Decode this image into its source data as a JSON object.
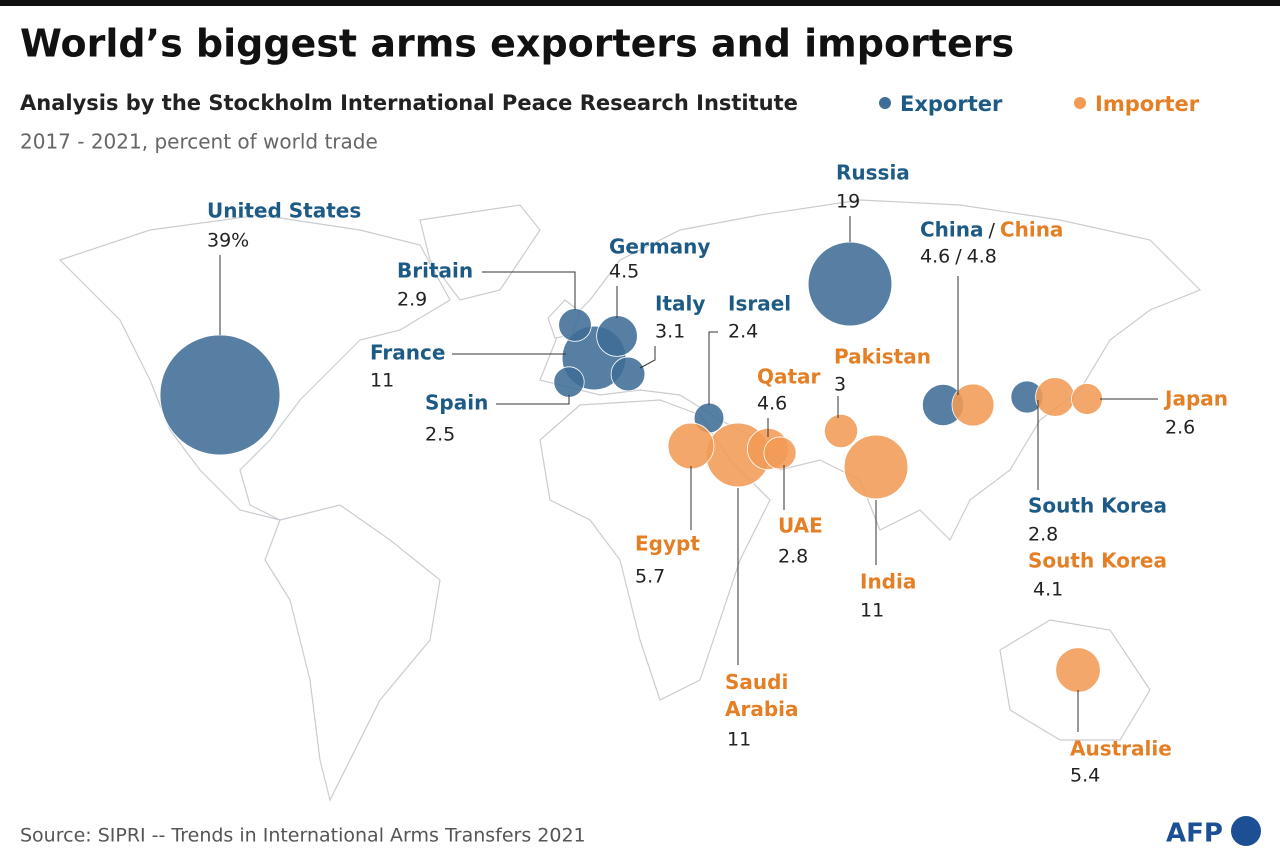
{
  "chart_data": {
    "type": "bubble-map",
    "title": "World’s biggest arms exporters and importers",
    "subtitle": "Analysis by the Stockholm International Peace Research Institute",
    "note": "2017 - 2021, percent of world trade",
    "source": "Source: SIPRI -- Trends in International Arms Transfers 2021",
    "logo": "AFP",
    "combined_separator": "/",
    "series": [
      {
        "name": "Exporter",
        "color": "#3f6d96",
        "label_color": "#1d5b86",
        "labels": [
          "United States",
          "Russia",
          "France",
          "China",
          "Germany",
          "Italy",
          "Britain",
          "Spain",
          "South Korea",
          "Israel"
        ],
        "values": [
          39,
          19,
          11,
          4.6,
          4.5,
          3.1,
          2.9,
          2.5,
          2.8,
          2.4
        ],
        "value_labels": [
          "39%",
          "19",
          "11",
          "4.6",
          "4.5",
          "3.1",
          "2.9",
          "2.5",
          "2.8",
          "2.4"
        ]
      },
      {
        "name": "Importer",
        "color": "#f19b55",
        "label_color": "#e57f25",
        "labels": [
          "India",
          "Saudi Arabia",
          "Egypt",
          "Australie",
          "China",
          "Qatar",
          "South Korea",
          "Pakistan",
          "UAE",
          "Japan"
        ],
        "values": [
          11,
          11,
          5.7,
          5.4,
          4.8,
          4.6,
          4.1,
          3,
          2.8,
          2.6
        ]
      }
    ]
  }
}
